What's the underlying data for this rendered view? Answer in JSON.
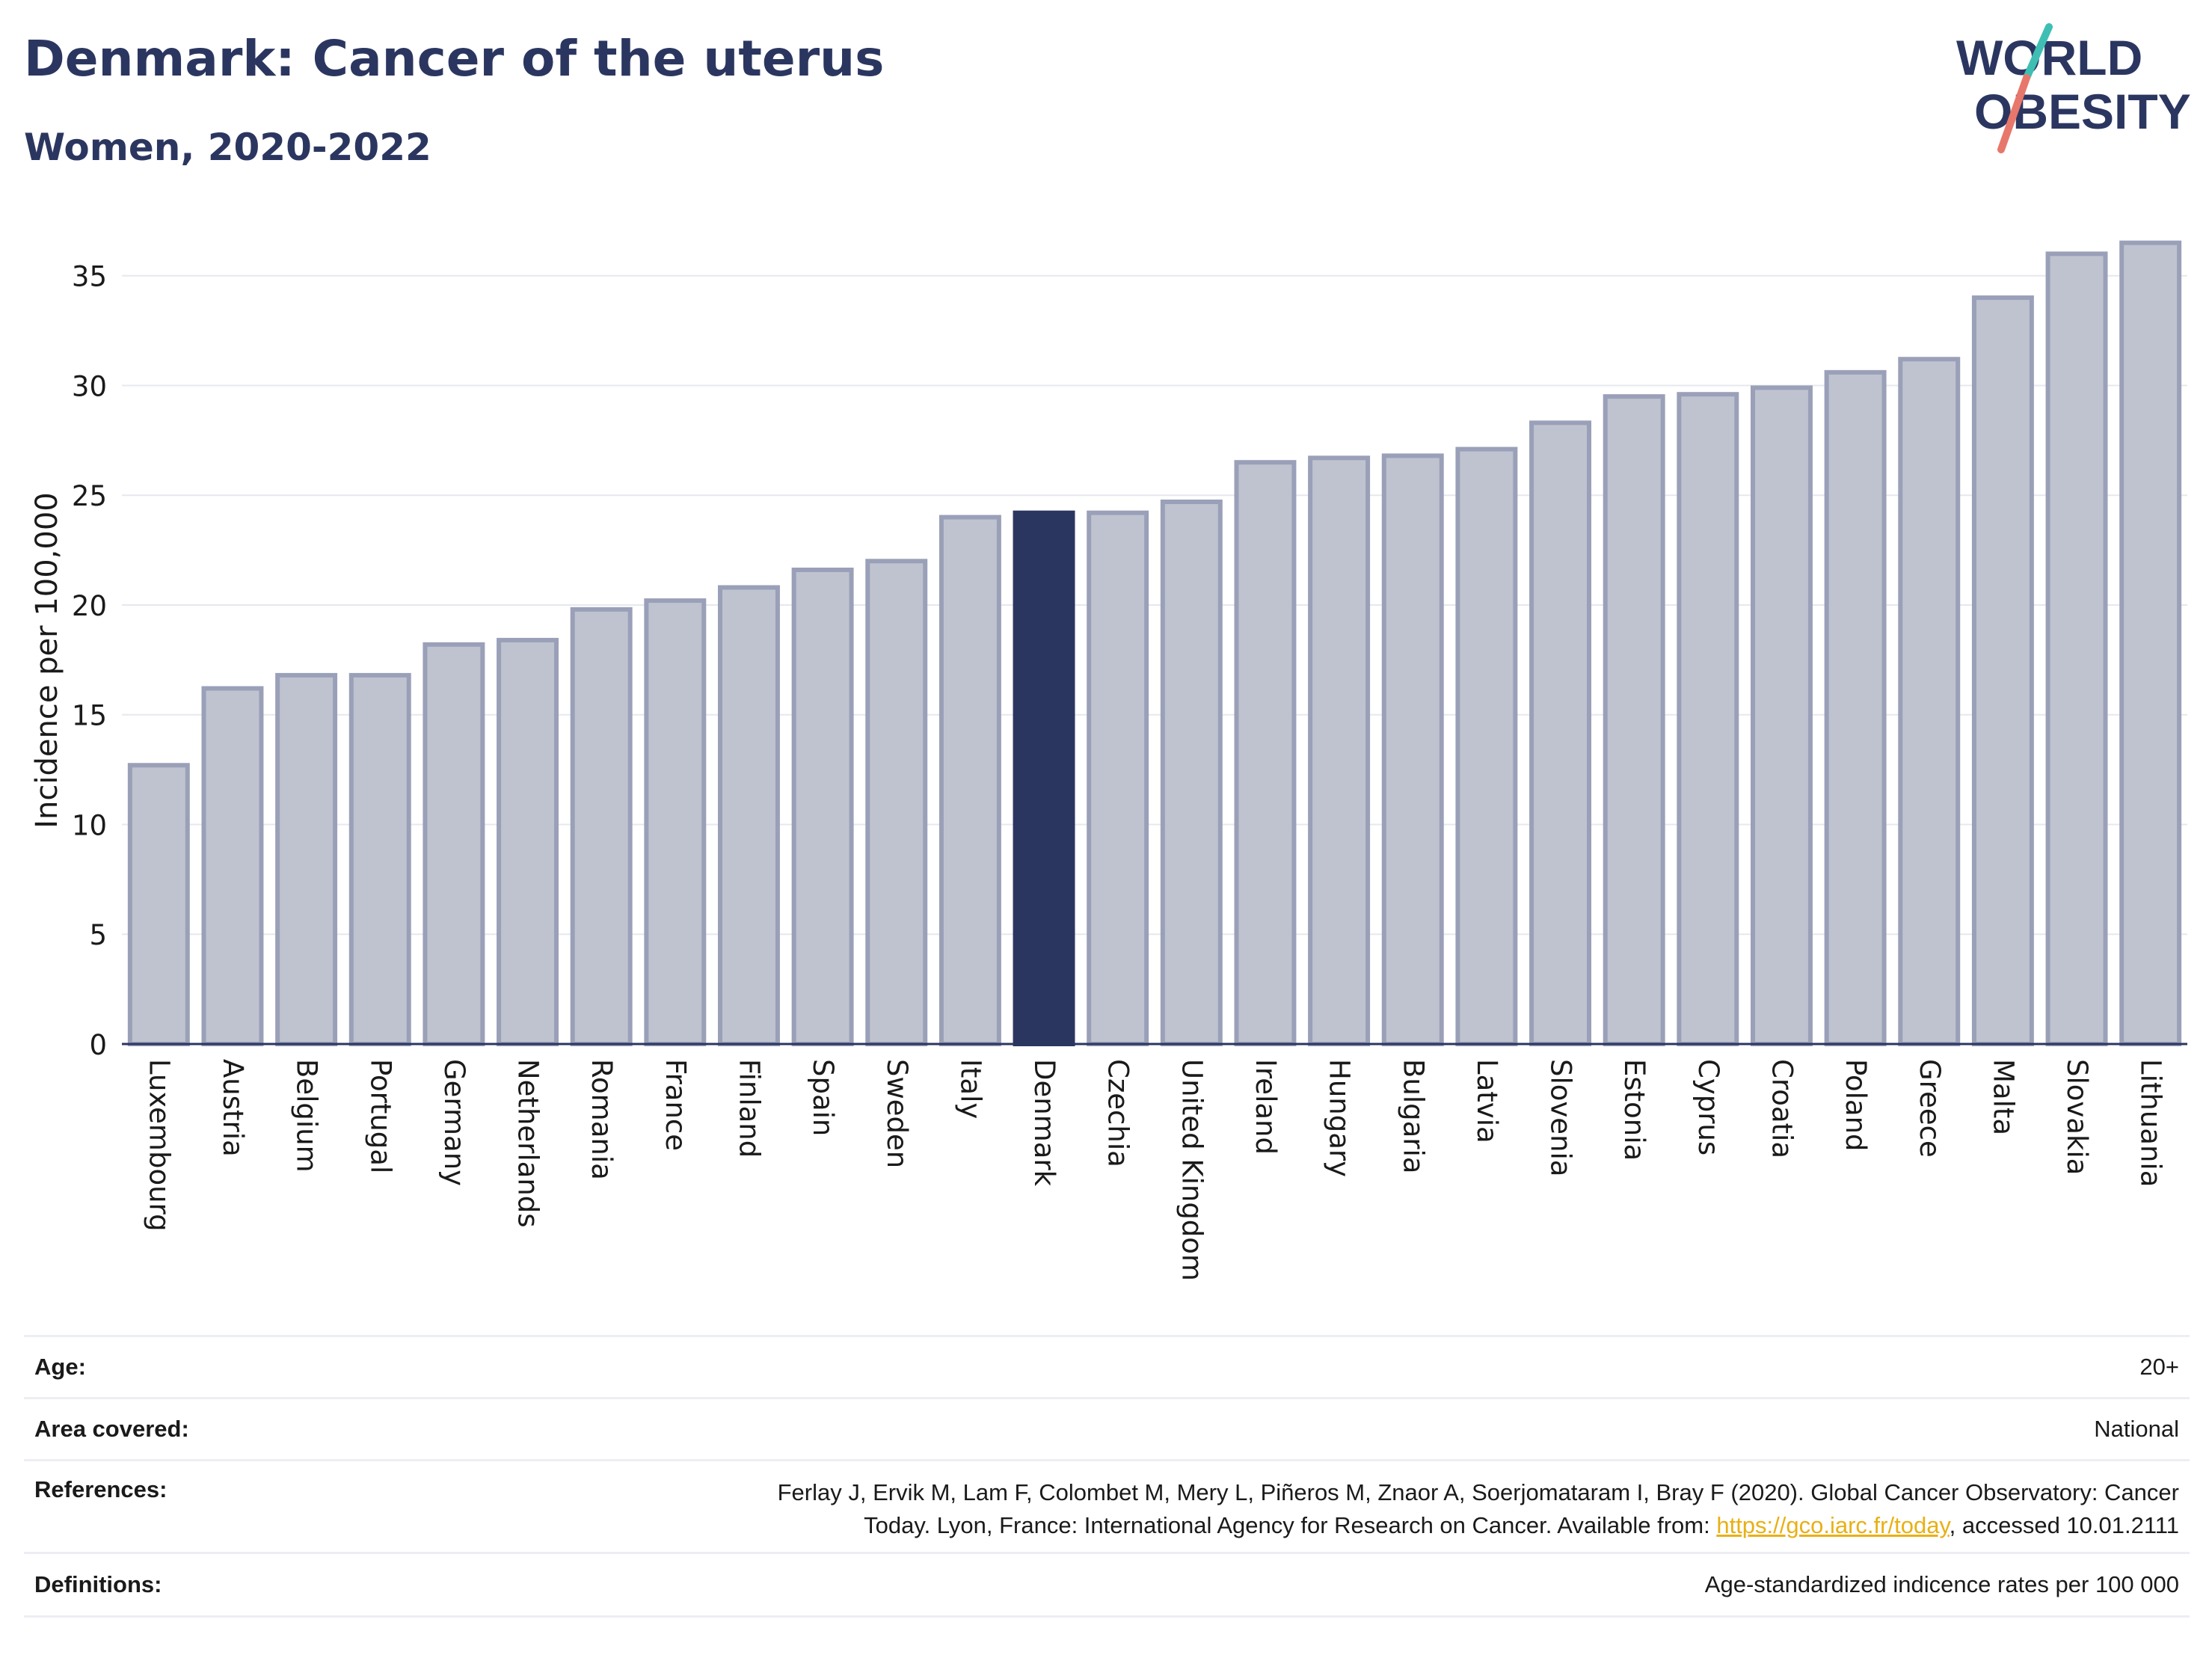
{
  "header": {
    "title": "Denmark: Cancer of the uterus",
    "subtitle": "Women, 2020-2022",
    "logo_line1": "WORLD",
    "logo_line2": "OBESITY"
  },
  "colors": {
    "bar": "#bfc3d0",
    "bar_border": "#9aa0b8",
    "highlight": "#2b3660",
    "title": "#2b3660",
    "link": "#e8b016",
    "logo_teal": "#3fbfb4",
    "logo_coral": "#e8776b"
  },
  "chart_data": {
    "type": "bar",
    "ylabel": "Incidence per 100,000",
    "xlabel": "",
    "ylim": [
      0,
      37
    ],
    "yticks": [
      0,
      5,
      10,
      15,
      20,
      25,
      30,
      35
    ],
    "grid": true,
    "highlight": "Denmark",
    "categories": [
      "Luxembourg",
      "Austria",
      "Belgium",
      "Portugal",
      "Germany",
      "Netherlands",
      "Romania",
      "France",
      "Finland",
      "Spain",
      "Sweden",
      "Italy",
      "Denmark",
      "Czechia",
      "United Kingdom",
      "Ireland",
      "Hungary",
      "Bulgaria",
      "Latvia",
      "Slovenia",
      "Estonia",
      "Cyprus",
      "Croatia",
      "Poland",
      "Greece",
      "Malta",
      "Slovakia",
      "Lithuania"
    ],
    "values": [
      12.7,
      16.2,
      16.8,
      16.8,
      18.2,
      18.4,
      19.8,
      20.2,
      20.8,
      21.6,
      22.0,
      24.0,
      24.2,
      24.2,
      24.7,
      26.5,
      26.7,
      26.8,
      27.1,
      28.3,
      29.5,
      29.6,
      29.9,
      30.6,
      31.2,
      34.0,
      36.0,
      36.5
    ]
  },
  "footer": {
    "age_label": "Age:",
    "age_value": "20+",
    "area_label": "Area covered:",
    "area_value": "National",
    "references_label": "References:",
    "references_text_1": "Ferlay J, Ervik M, Lam F, Colombet M, Mery L, Piñeros M, Znaor A, Soerjomataram I, Bray F (2020). Global Cancer Observatory: Cancer",
    "references_text_2": "Today. Lyon, France: International Agency for Research on Cancer. Available from: ",
    "references_link": "https://gco.iarc.fr/today",
    "references_text_3": ", accessed 10.01.2111",
    "definitions_label": "Definitions:",
    "definitions_value": "Age-standardized indicence rates per 100 000"
  }
}
